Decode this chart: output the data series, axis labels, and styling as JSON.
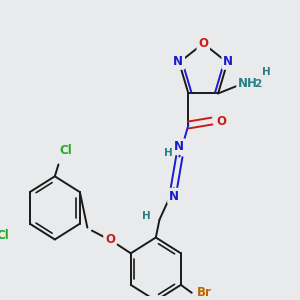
{
  "bg_color": "#e8eaec",
  "C": "#1a1a1a",
  "N": "#1a1acc",
  "O": "#cc1a1a",
  "H": "#2a8080",
  "Cl": "#22aa22",
  "Br": "#bb6600"
}
